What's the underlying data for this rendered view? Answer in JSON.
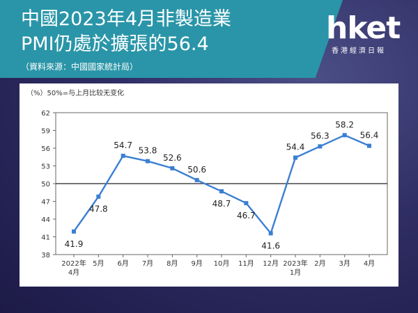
{
  "header": {
    "title_line1": "中國2023年4月非製造業",
    "title_line2": "PMI仍處於擴張的56.4",
    "source": "（資料來源：中國國家統計局）"
  },
  "logo": {
    "word": "hket",
    "sub": "香港經濟日報"
  },
  "colors": {
    "banner": "#2a95a8",
    "line": "#3a7fd2",
    "marker": "#3a7fd2"
  },
  "chart_data": {
    "type": "line",
    "ylabel": "（%）50%=与上月比较无变化",
    "ylim": [
      38,
      62
    ],
    "yticks": [
      "62",
      "59",
      "56",
      "53",
      "50",
      "47",
      "44",
      "41",
      "38"
    ],
    "reference_line": 50,
    "categories": [
      [
        "2022年",
        "4月"
      ],
      [
        "5月"
      ],
      [
        "6月"
      ],
      [
        "7月"
      ],
      [
        "8月"
      ],
      [
        "9月"
      ],
      [
        "10月"
      ],
      [
        "11月"
      ],
      [
        "12月"
      ],
      [
        "2023年",
        "1月"
      ],
      [
        "2月"
      ],
      [
        "3月"
      ],
      [
        "4月"
      ]
    ],
    "values": [
      41.9,
      47.8,
      54.7,
      53.8,
      52.6,
      50.6,
      48.7,
      46.7,
      41.6,
      54.4,
      56.3,
      58.2,
      56.4
    ],
    "labels": [
      "41.9",
      "47.8",
      "54.7",
      "53.8",
      "52.6",
      "50.6",
      "48.7",
      "46.7",
      "41.6",
      "54.4",
      "56.3",
      "58.2",
      "56.4"
    ]
  }
}
